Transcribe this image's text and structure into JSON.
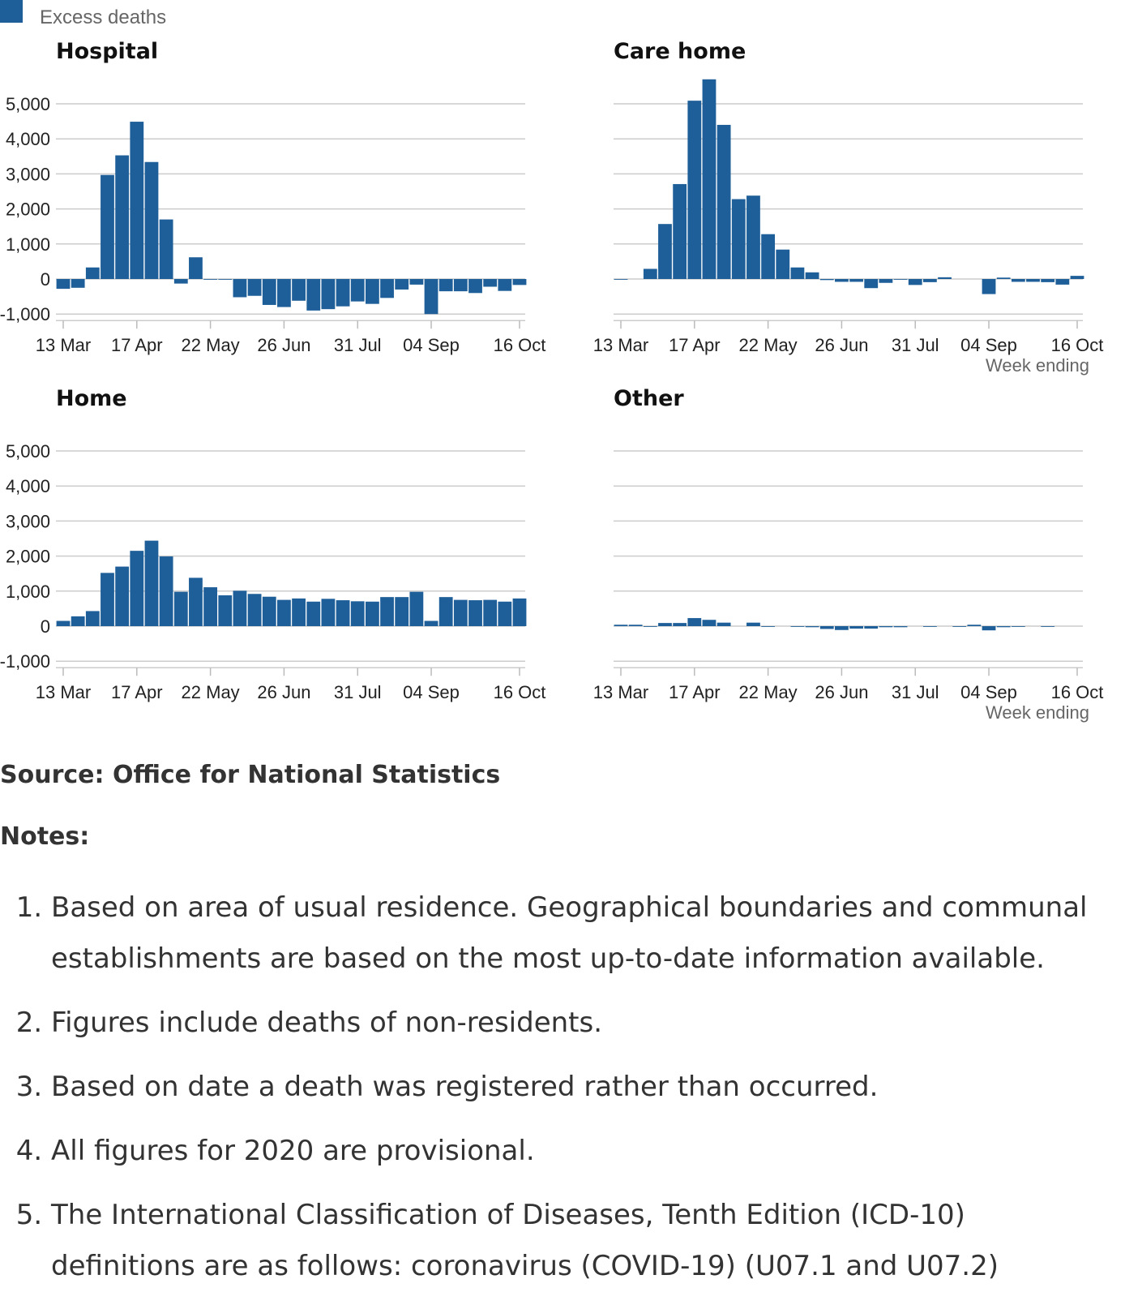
{
  "legend": {
    "label": "Excess deaths",
    "color": "#1f5f99"
  },
  "chart_data": [
    {
      "type": "bar",
      "title": "Hospital",
      "color": "#1f5f99",
      "categories": [
        "13 Mar",
        null,
        null,
        null,
        null,
        "17 Apr",
        null,
        null,
        null,
        null,
        "22 May",
        null,
        null,
        null,
        null,
        "26 Jun",
        null,
        null,
        null,
        null,
        "31 Jul",
        null,
        null,
        null,
        null,
        "04 Sep",
        null,
        null,
        null,
        null,
        null,
        "16 Oct"
      ],
      "values": [
        -280,
        -250,
        330,
        2970,
        3530,
        4490,
        3340,
        1700,
        -130,
        620,
        -20,
        -20,
        -520,
        -480,
        -740,
        -800,
        -620,
        -900,
        -860,
        -780,
        -640,
        -710,
        -540,
        -300,
        -160,
        -1000,
        -350,
        -350,
        -400,
        -220,
        -340,
        -170
      ],
      "ylim": [
        -1000,
        5700
      ],
      "yticks": [
        {
          "value": -1000,
          "label": "-1,000"
        },
        0,
        {
          "value": 1000,
          "label": "1,000"
        },
        {
          "value": 2000,
          "label": "2,000"
        },
        {
          "value": 3000,
          "label": "3,000"
        },
        {
          "value": 4000,
          "label": "4,000"
        },
        {
          "value": 5000,
          "label": "5,000"
        }
      ],
      "ytick_labels": true,
      "grid": true
    },
    {
      "type": "bar",
      "title": "Care home",
      "color": "#1f5f99",
      "categories": [
        "13 Mar",
        null,
        null,
        null,
        null,
        "17 Apr",
        null,
        null,
        null,
        null,
        "22 May",
        null,
        null,
        null,
        null,
        "26 Jun",
        null,
        null,
        null,
        null,
        "31 Jul",
        null,
        null,
        null,
        null,
        "04 Sep",
        null,
        null,
        null,
        null,
        null,
        "16 Oct"
      ],
      "values": [
        -20,
        0,
        290,
        1570,
        2710,
        5090,
        5700,
        4400,
        2280,
        2380,
        1280,
        840,
        330,
        190,
        -30,
        -80,
        -80,
        -260,
        -110,
        -20,
        -170,
        -90,
        50,
        0,
        0,
        -430,
        40,
        -80,
        -80,
        -90,
        -160,
        90
      ],
      "ylim": [
        -1000,
        5700
      ],
      "yticks": [
        -1000,
        0,
        1000,
        2000,
        3000,
        4000,
        5000
      ],
      "ytick_labels": false,
      "grid": true,
      "xlabel": "Week ending"
    },
    {
      "type": "bar",
      "title": "Home",
      "color": "#1f5f99",
      "categories": [
        "13 Mar",
        null,
        null,
        null,
        null,
        "17 Apr",
        null,
        null,
        null,
        null,
        "22 May",
        null,
        null,
        null,
        null,
        "26 Jun",
        null,
        null,
        null,
        null,
        "31 Jul",
        null,
        null,
        null,
        null,
        "04 Sep",
        null,
        null,
        null,
        null,
        null,
        "16 Oct"
      ],
      "values": [
        150,
        280,
        430,
        1520,
        1700,
        2150,
        2440,
        1990,
        980,
        1380,
        1110,
        880,
        1010,
        920,
        840,
        750,
        790,
        700,
        780,
        740,
        710,
        700,
        830,
        830,
        980,
        150,
        830,
        750,
        740,
        750,
        700,
        790
      ],
      "ylim": [
        -1000,
        5700
      ],
      "yticks": [
        {
          "value": -1000,
          "label": "-1,000"
        },
        0,
        {
          "value": 1000,
          "label": "1,000"
        },
        {
          "value": 2000,
          "label": "2,000"
        },
        {
          "value": 3000,
          "label": "3,000"
        },
        {
          "value": 4000,
          "label": "4,000"
        },
        {
          "value": 5000,
          "label": "5,000"
        }
      ],
      "ytick_labels": true,
      "grid": true
    },
    {
      "type": "bar",
      "title": "Other",
      "color": "#1f5f99",
      "categories": [
        "13 Mar",
        null,
        null,
        null,
        null,
        "17 Apr",
        null,
        null,
        null,
        null,
        "22 May",
        null,
        null,
        null,
        null,
        "26 Jun",
        null,
        null,
        null,
        null,
        "31 Jul",
        null,
        null,
        null,
        null,
        "04 Sep",
        null,
        null,
        null,
        null,
        null,
        "16 Oct"
      ],
      "values": [
        40,
        40,
        -20,
        90,
        90,
        230,
        180,
        100,
        0,
        100,
        -20,
        0,
        -20,
        -30,
        -80,
        -110,
        -70,
        -70,
        -30,
        -30,
        0,
        -20,
        0,
        -20,
        40,
        -120,
        -30,
        -20,
        0,
        -20,
        0,
        0
      ],
      "ylim": [
        -1000,
        5700
      ],
      "yticks": [
        -1000,
        0,
        1000,
        2000,
        3000,
        4000,
        5000
      ],
      "ytick_labels": false,
      "grid": true,
      "xlabel": "Week ending"
    }
  ],
  "source": "Source: Office for National Statistics",
  "notes": {
    "heading": "Notes:",
    "items": [
      "Based on area of usual residence. Geographical boundaries and communal establishments are based on the most up-to-date information available.",
      "Figures include deaths of non-residents.",
      "Based on date a death was registered rather than occurred.",
      "All figures for 2020 are provisional.",
      "The International Classification of Diseases, Tenth Edition (ICD-10) definitions are as follows: coronavirus (COVID-19) (U07.1 and U07.2)"
    ]
  }
}
